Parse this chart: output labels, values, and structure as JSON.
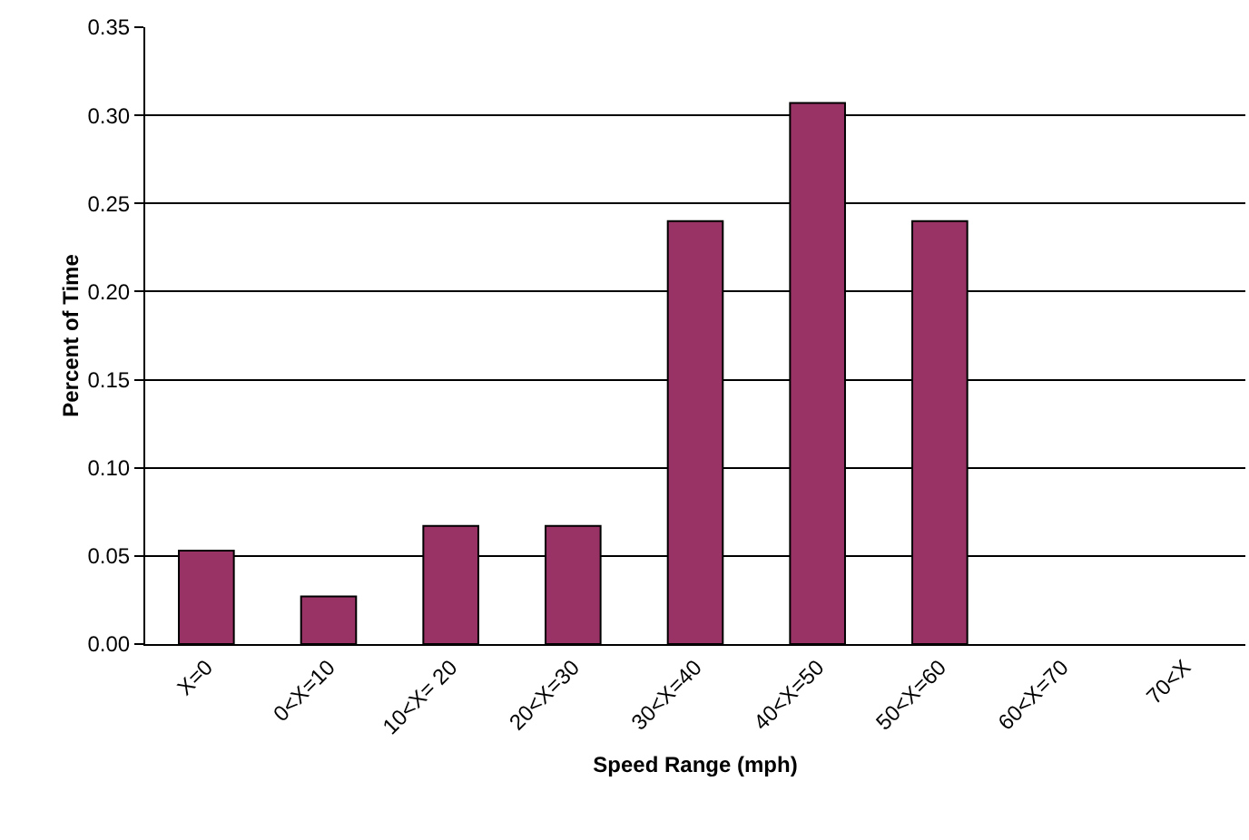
{
  "chart_data": {
    "type": "bar",
    "xlabel": "Speed Range (mph)",
    "ylabel": "Percent of Time",
    "categories": [
      "X=0",
      "0<X=10",
      "10<X= 20",
      "20<X=30",
      "30<X=40",
      "40<X=50",
      "50<X=60",
      "60<X=70",
      "70<X"
    ],
    "values": [
      0.053,
      0.027,
      0.067,
      0.067,
      0.24,
      0.307,
      0.24,
      0,
      0
    ],
    "color": "#993366",
    "ylim": [
      0,
      0.35
    ],
    "yticks": [
      {
        "value": 0,
        "label": "0.00"
      },
      {
        "value": 0.05,
        "label": "0.05"
      },
      {
        "value": 0.1,
        "label": "0.10"
      },
      {
        "value": 0.15,
        "label": "0.15"
      },
      {
        "value": 0.2,
        "label": "0.20"
      },
      {
        "value": 0.25,
        "label": "0.25"
      },
      {
        "value": 0.3,
        "label": "0.30"
      },
      {
        "value": 0.35,
        "label": "0.35"
      }
    ],
    "grid": "y"
  }
}
